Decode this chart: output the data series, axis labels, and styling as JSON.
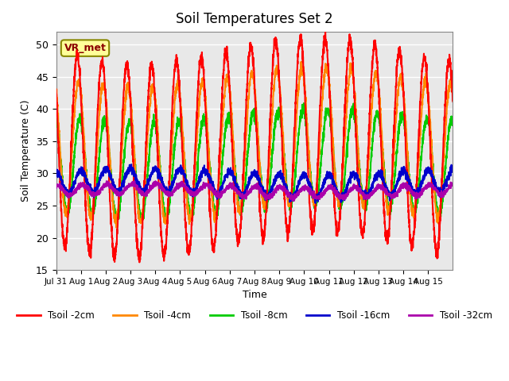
{
  "title": "Soil Temperatures Set 2",
  "xlabel": "Time",
  "ylabel": "Soil Temperature (C)",
  "ylim": [
    15,
    52
  ],
  "xlim": [
    0,
    16
  ],
  "background_color": "#ffffff",
  "plot_bg_color": "#e8e8e8",
  "grid_color": "#ffffff",
  "colors": {
    "2cm": "#ff0000",
    "4cm": "#ff8800",
    "8cm": "#00cc00",
    "16cm": "#0000cc",
    "32cm": "#aa00aa"
  },
  "legend_labels": [
    "Tsoil -2cm",
    "Tsoil -4cm",
    "Tsoil -8cm",
    "Tsoil -16cm",
    "Tsoil -32cm"
  ],
  "annotation_text": "VR_met",
  "x_tick_positions": [
    0,
    1,
    2,
    3,
    4,
    5,
    6,
    7,
    8,
    9,
    10,
    11,
    12,
    13,
    14,
    15
  ],
  "x_tick_labels": [
    "Jul 31",
    "Aug 1",
    "Aug 2",
    "Aug 3",
    "Aug 4",
    "Aug 5",
    "Aug 6",
    "Aug 7",
    "Aug 8",
    "Aug 9",
    "Aug 10",
    "Aug 11",
    "Aug 12",
    "Aug 13",
    "Aug 14",
    "Aug 15"
  ],
  "y_ticks": [
    15,
    20,
    25,
    30,
    35,
    40,
    45,
    50
  ],
  "line_width": 1.5,
  "n_points": 3000
}
